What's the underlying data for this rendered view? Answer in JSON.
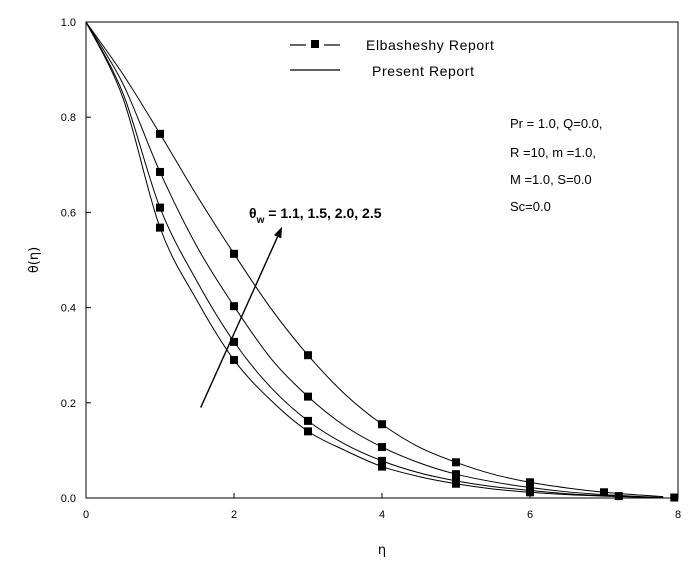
{
  "chart_data": {
    "type": "line",
    "title": "",
    "xlabel": "η",
    "ylabel": "θ(η)",
    "xlim": [
      0,
      8
    ],
    "ylim": [
      0,
      1.0
    ],
    "x_ticks": [
      "0",
      "2",
      "4",
      "6",
      "8"
    ],
    "y_ticks": [
      "0.0",
      "0.2",
      "0.4",
      "0.6",
      "0.8",
      "1.0"
    ],
    "grid": false,
    "legend_position": "top-center",
    "legend": {
      "markers_label": "Elbasheshy Report",
      "lines_label": "Present Report"
    },
    "parameters": [
      "Pr = 1.0, Q=0.0,",
      "R =10, m =1.0,",
      "M =1.0, S=0.0",
      "Sc=0.0"
    ],
    "annotation": {
      "symbol": "θ",
      "subscript": "w",
      "text": " = 1.1, 1.5, 2.0, 2.5"
    },
    "series": [
      {
        "line": [
          [
            0,
            1.0
          ],
          [
            0.5,
            0.84
          ],
          [
            1,
            0.568
          ],
          [
            1.5,
            0.415
          ],
          [
            2,
            0.29
          ],
          [
            2.5,
            0.205
          ],
          [
            3,
            0.14
          ],
          [
            3.5,
            0.1
          ],
          [
            4,
            0.066
          ],
          [
            4.5,
            0.045
          ],
          [
            5,
            0.03
          ],
          [
            5.5,
            0.019
          ],
          [
            6,
            0.012
          ],
          [
            6.5,
            0.007
          ],
          [
            7,
            0.004
          ],
          [
            7.5,
            0.002
          ],
          [
            7.8,
            0.001
          ]
        ],
        "points": [
          [
            1,
            0.568
          ],
          [
            2,
            0.29
          ],
          [
            3,
            0.14
          ],
          [
            4,
            0.066
          ],
          [
            5,
            0.03
          ],
          [
            6,
            0.012
          ]
        ]
      },
      {
        "line": [
          [
            0,
            1.0
          ],
          [
            0.5,
            0.85
          ],
          [
            1,
            0.61
          ],
          [
            1.5,
            0.455
          ],
          [
            2,
            0.328
          ],
          [
            2.5,
            0.232
          ],
          [
            3,
            0.162
          ],
          [
            3.5,
            0.113
          ],
          [
            4,
            0.078
          ],
          [
            4.5,
            0.053
          ],
          [
            5,
            0.036
          ],
          [
            5.5,
            0.024
          ],
          [
            6,
            0.016
          ],
          [
            6.5,
            0.009
          ],
          [
            7,
            0.005
          ],
          [
            7.5,
            0.002
          ],
          [
            7.8,
            0.001
          ]
        ],
        "points": [
          [
            1,
            0.61
          ],
          [
            2,
            0.328
          ],
          [
            3,
            0.162
          ],
          [
            4,
            0.078
          ],
          [
            5,
            0.036
          ],
          [
            6,
            0.016
          ]
        ]
      },
      {
        "line": [
          [
            0,
            1.0
          ],
          [
            0.5,
            0.87
          ],
          [
            1,
            0.685
          ],
          [
            1.5,
            0.528
          ],
          [
            2,
            0.403
          ],
          [
            2.5,
            0.293
          ],
          [
            3,
            0.213
          ],
          [
            3.5,
            0.151
          ],
          [
            4,
            0.107
          ],
          [
            4.5,
            0.074
          ],
          [
            5,
            0.05
          ],
          [
            5.5,
            0.034
          ],
          [
            6,
            0.022
          ],
          [
            6.5,
            0.013
          ],
          [
            7,
            0.007
          ],
          [
            7.5,
            0.003
          ],
          [
            7.8,
            0.001
          ]
        ],
        "points": [
          [
            1,
            0.685
          ],
          [
            2,
            0.403
          ],
          [
            3,
            0.213
          ],
          [
            4,
            0.107
          ],
          [
            5,
            0.05
          ],
          [
            6,
            0.022
          ]
        ]
      },
      {
        "line": [
          [
            0,
            1.0
          ],
          [
            0.5,
            0.89
          ],
          [
            1,
            0.765
          ],
          [
            1.5,
            0.635
          ],
          [
            2,
            0.513
          ],
          [
            2.5,
            0.398
          ],
          [
            3,
            0.3
          ],
          [
            3.5,
            0.218
          ],
          [
            4,
            0.155
          ],
          [
            4.5,
            0.107
          ],
          [
            5,
            0.075
          ],
          [
            5.5,
            0.05
          ],
          [
            6,
            0.033
          ],
          [
            6.5,
            0.021
          ],
          [
            7,
            0.012
          ],
          [
            7.5,
            0.006
          ],
          [
            7.8,
            0.003
          ]
        ],
        "points": [
          [
            1,
            0.765
          ],
          [
            2,
            0.513
          ],
          [
            3,
            0.3
          ],
          [
            4,
            0.155
          ],
          [
            5,
            0.075
          ],
          [
            6,
            0.033
          ],
          [
            7,
            0.012
          ],
          [
            7.2,
            0.004
          ],
          [
            7.95,
            0.001
          ]
        ]
      }
    ],
    "arrow": {
      "from": [
        1.55,
        0.19
      ],
      "to": [
        2.65,
        0.57
      ]
    }
  }
}
